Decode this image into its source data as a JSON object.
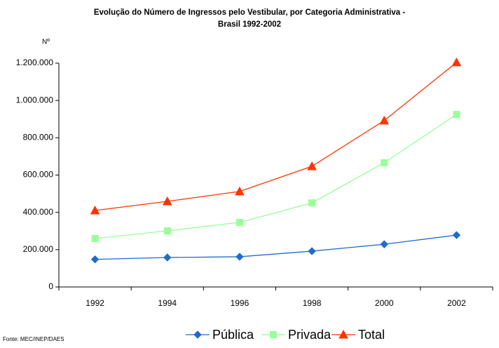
{
  "chart_data": {
    "type": "line",
    "title": "Evolução do Número de Ingressos pelo Vestibular, por Categoria Administrativa -",
    "subtitle": "Brasil 1992-2002",
    "y_label": "Nº",
    "source": "Fonte: MEC/INEP/DAES",
    "categories": [
      "1992",
      "1994",
      "1996",
      "1998",
      "2000",
      "2002"
    ],
    "series": [
      {
        "name": "Pública",
        "color": "#1f6cc8",
        "marker": "diamond",
        "values": [
          148000,
          158000,
          162000,
          192000,
          229000,
          278000
        ]
      },
      {
        "name": "Privada",
        "color": "#99ff99",
        "marker": "square",
        "values": [
          260000,
          301000,
          346000,
          451000,
          666000,
          925000
        ]
      },
      {
        "name": "Total",
        "color": "#ff3300",
        "marker": "triangle",
        "values": [
          410000,
          459000,
          512000,
          647000,
          892000,
          1204000
        ]
      }
    ],
    "ylim": [
      0,
      1200000
    ],
    "yticks": [
      0,
      {
        "value": 200000,
        "label": "200.000"
      },
      {
        "value": 400000,
        "label": "400.000"
      },
      {
        "value": 600000,
        "label": "600.000"
      },
      {
        "value": 800000,
        "label": "800.000"
      },
      {
        "value": 1000000,
        "label": "1.000.000"
      },
      {
        "value": 1200000,
        "label": "1.200.000"
      }
    ],
    "legend": "bottom"
  }
}
